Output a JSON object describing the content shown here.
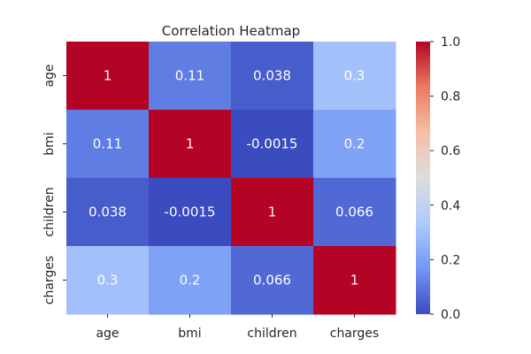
{
  "chart_data": {
    "type": "heatmap",
    "title": "Correlation Heatmap",
    "xlabel": "",
    "ylabel": "",
    "x_categories": [
      "age",
      "bmi",
      "children",
      "charges"
    ],
    "y_categories": [
      "age",
      "bmi",
      "children",
      "charges"
    ],
    "values": [
      [
        1,
        0.11,
        0.038,
        0.3
      ],
      [
        0.11,
        1,
        -0.0015,
        0.2
      ],
      [
        0.038,
        -0.0015,
        1,
        0.066
      ],
      [
        0.3,
        0.2,
        0.066,
        1
      ]
    ],
    "cell_labels": [
      [
        "1",
        "0.11",
        "0.038",
        "0.3"
      ],
      [
        "0.11",
        "1",
        "-0.0015",
        "0.2"
      ],
      [
        "0.038",
        "-0.0015",
        "1",
        "0.066"
      ],
      [
        "0.3",
        "0.2",
        "0.066",
        "1"
      ]
    ],
    "colormap": "coolwarm",
    "colormap_stops": [
      "#3b4cc0",
      "#7396f5",
      "#b0cbfc",
      "#dcdddd",
      "#f6bfa6",
      "#ea7b60",
      "#b40426"
    ],
    "vmin": 0.0,
    "vmax": 1.0,
    "colorbar_ticks": [
      "0.0",
      "0.2",
      "0.4",
      "0.6",
      "0.8",
      "1.0"
    ],
    "colorbar_placement": "right",
    "grid": false
  }
}
